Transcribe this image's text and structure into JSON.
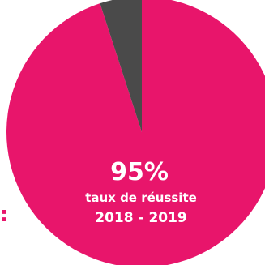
{
  "chart_data": {
    "type": "pie",
    "slices": [
      {
        "label": "taux de réussite",
        "value": 95,
        "color": "#e8156b"
      },
      {
        "label": "",
        "value": 5,
        "color": "#4a4a4a"
      }
    ],
    "center_text": {
      "value_label": "95%",
      "caption": "taux de réussite",
      "period": "2018 - 2019"
    }
  },
  "decor": {
    "side_mark": ":",
    "side_mark_color": "#e8156b"
  }
}
